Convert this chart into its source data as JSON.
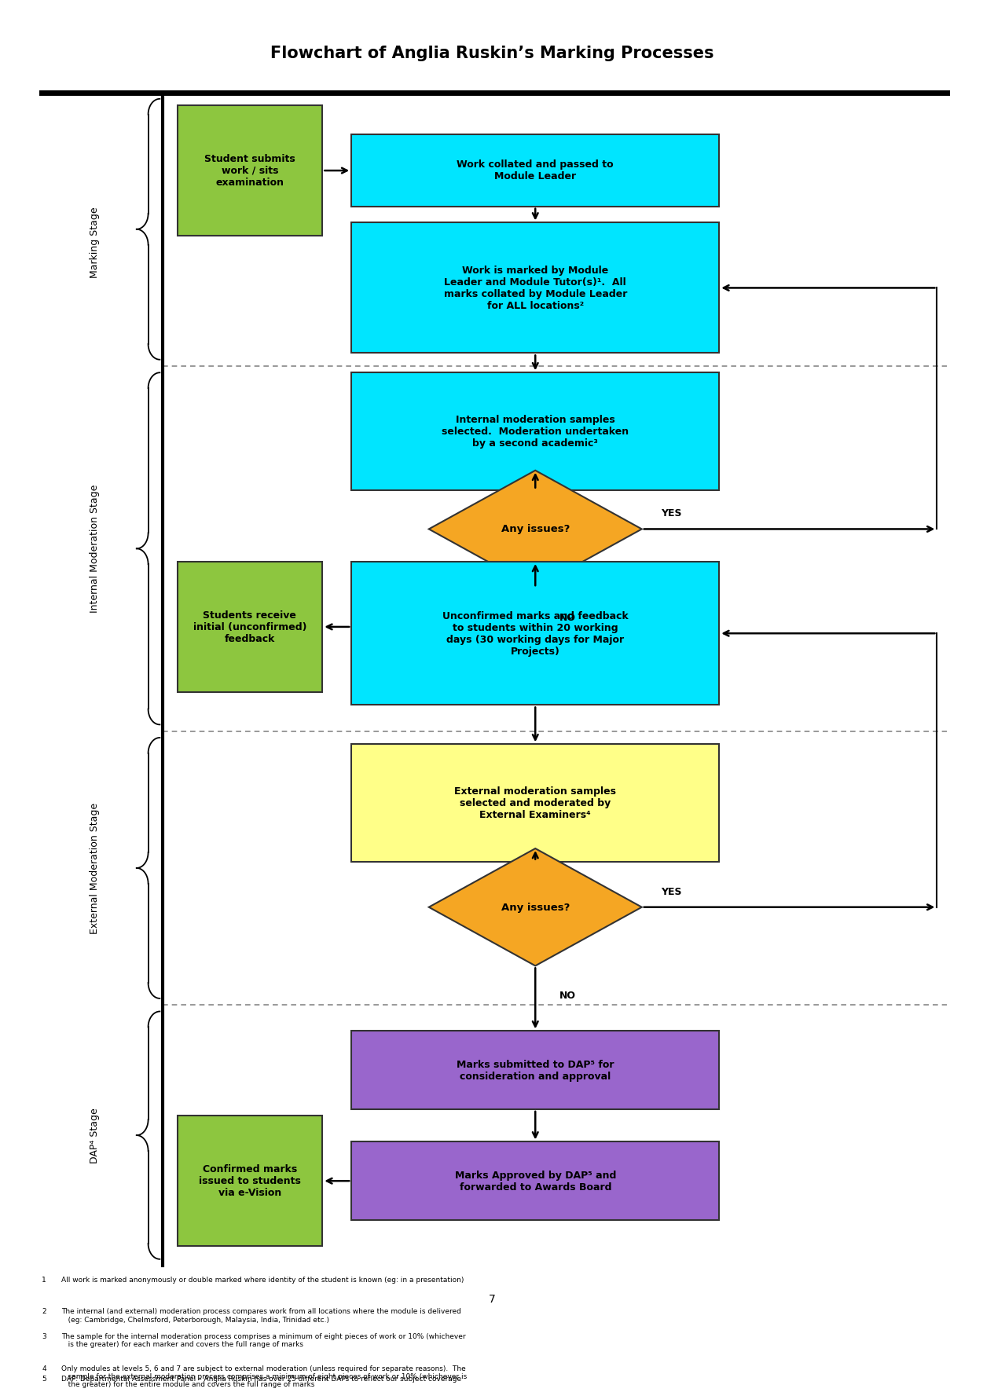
{
  "title": "Flowchart of Anglia Ruskin’s Marking Processes",
  "bg_color": "#ffffff",
  "box_cyan": "#00E5FF",
  "box_green": "#8DC63F",
  "box_yellow": "#FFFF88",
  "box_purple": "#9966CC",
  "box_orange": "#F5A623",
  "text_color": "#000000",
  "footnotes": [
    "All work is marked anonymously or double marked where identity of the student is known (eg: in a presentation)",
    "The internal (and external) moderation process compares work from all locations where the module is delivered\n   (eg: Cambridge, Chelmsford, Peterborough, Malaysia, India, Trinidad etc.)",
    "The sample for the internal moderation process comprises a minimum of eight pieces of work or 10% (whichever\n   is the greater) for each marker and covers the full range of marks",
    "Only modules at levels 5, 6 and 7 are subject to external moderation (unless required for separate reasons).  The\n   sample for the external moderation process comprises a minimum of eight pieces of work or 10% (whichever is\n   the greater) for the entire module and covers the full range of marks",
    "DAP: Departmental Assessment Panel – Anglia Ruskin has over 25 different DAPs to reflect our subject coverage"
  ]
}
